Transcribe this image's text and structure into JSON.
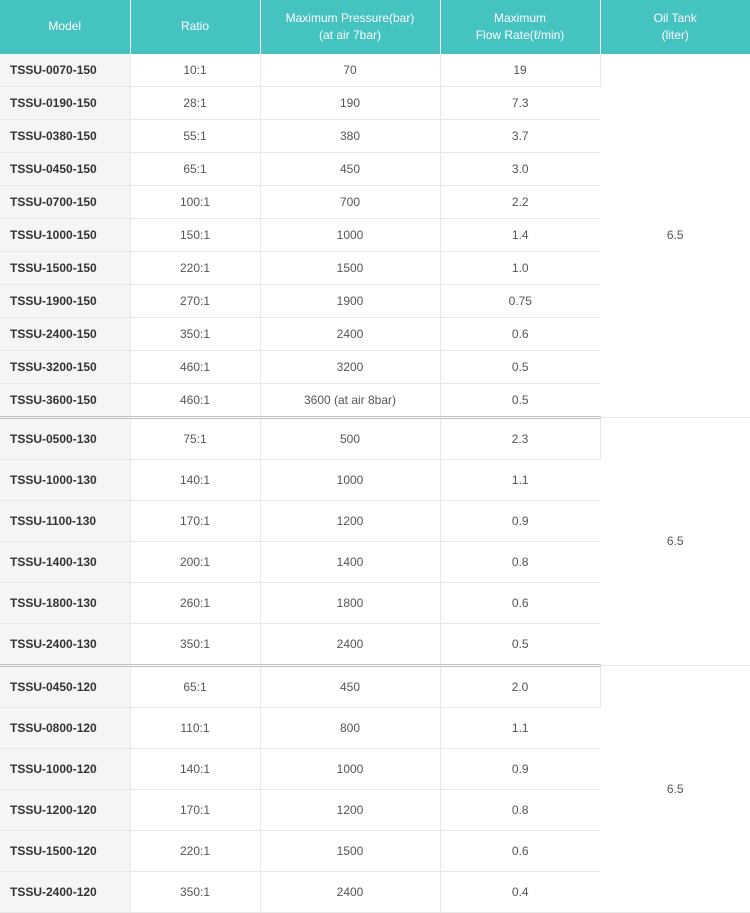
{
  "headers": {
    "model": "Model",
    "ratio": "Ratio",
    "pressure_line1": "Maximum Pressure(bar)",
    "pressure_line2": "(at air 7bar)",
    "flow_line1": "Maximum",
    "flow_line2": "Flow Rate(ℓ/min)",
    "tank_line1": "Oil Tank",
    "tank_line2": "(liter)"
  },
  "groups": [
    {
      "oil_tank": "6.5",
      "class": "g1",
      "rows": [
        {
          "model": "TSSU-0070-150",
          "ratio": "10:1",
          "pressure": "70",
          "flow": "19"
        },
        {
          "model": "TSSU-0190-150",
          "ratio": "28:1",
          "pressure": "190",
          "flow": "7.3"
        },
        {
          "model": "TSSU-0380-150",
          "ratio": "55:1",
          "pressure": "380",
          "flow": "3.7"
        },
        {
          "model": "TSSU-0450-150",
          "ratio": "65:1",
          "pressure": "450",
          "flow": "3.0"
        },
        {
          "model": "TSSU-0700-150",
          "ratio": "100:1",
          "pressure": "700",
          "flow": "2.2"
        },
        {
          "model": "TSSU-1000-150",
          "ratio": "150:1",
          "pressure": "1000",
          "flow": "1.4"
        },
        {
          "model": "TSSU-1500-150",
          "ratio": "220:1",
          "pressure": "1500",
          "flow": "1.0"
        },
        {
          "model": "TSSU-1900-150",
          "ratio": "270:1",
          "pressure": "1900",
          "flow": "0.75"
        },
        {
          "model": "TSSU-2400-150",
          "ratio": "350:1",
          "pressure": "2400",
          "flow": "0.6"
        },
        {
          "model": "TSSU-3200-150",
          "ratio": "460:1",
          "pressure": "3200",
          "flow": "0.5"
        },
        {
          "model": "TSSU-3600-150",
          "ratio": "460:1",
          "pressure": "3600 (at air 8bar)",
          "flow": "0.5"
        }
      ]
    },
    {
      "oil_tank": "6.5",
      "class": "g2",
      "rows": [
        {
          "model": "TSSU-0500-130",
          "ratio": "75:1",
          "pressure": "500",
          "flow": "2.3"
        },
        {
          "model": "TSSU-1000-130",
          "ratio": "140:1",
          "pressure": "1000",
          "flow": "1.1"
        },
        {
          "model": "TSSU-1100-130",
          "ratio": "170:1",
          "pressure": "1200",
          "flow": "0.9"
        },
        {
          "model": "TSSU-1400-130",
          "ratio": "200:1",
          "pressure": "1400",
          "flow": "0.8"
        },
        {
          "model": "TSSU-1800-130",
          "ratio": "260:1",
          "pressure": "1800",
          "flow": "0.6"
        },
        {
          "model": "TSSU-2400-130",
          "ratio": "350:1",
          "pressure": "2400",
          "flow": "0.5"
        }
      ]
    },
    {
      "oil_tank": "6.5",
      "class": "g3",
      "rows": [
        {
          "model": "TSSU-0450-120",
          "ratio": "65:1",
          "pressure": "450",
          "flow": "2.0"
        },
        {
          "model": "TSSU-0800-120",
          "ratio": "110:1",
          "pressure": "800",
          "flow": "1.1"
        },
        {
          "model": "TSSU-1000-120",
          "ratio": "140:1",
          "pressure": "1000",
          "flow": "0.9"
        },
        {
          "model": "TSSU-1200-120",
          "ratio": "170:1",
          "pressure": "1200",
          "flow": "0.8"
        },
        {
          "model": "TSSU-1500-120",
          "ratio": "220:1",
          "pressure": "1500",
          "flow": "0.6"
        },
        {
          "model": "TSSU-2400-120",
          "ratio": "350:1",
          "pressure": "2400",
          "flow": "0.4"
        }
      ]
    }
  ]
}
